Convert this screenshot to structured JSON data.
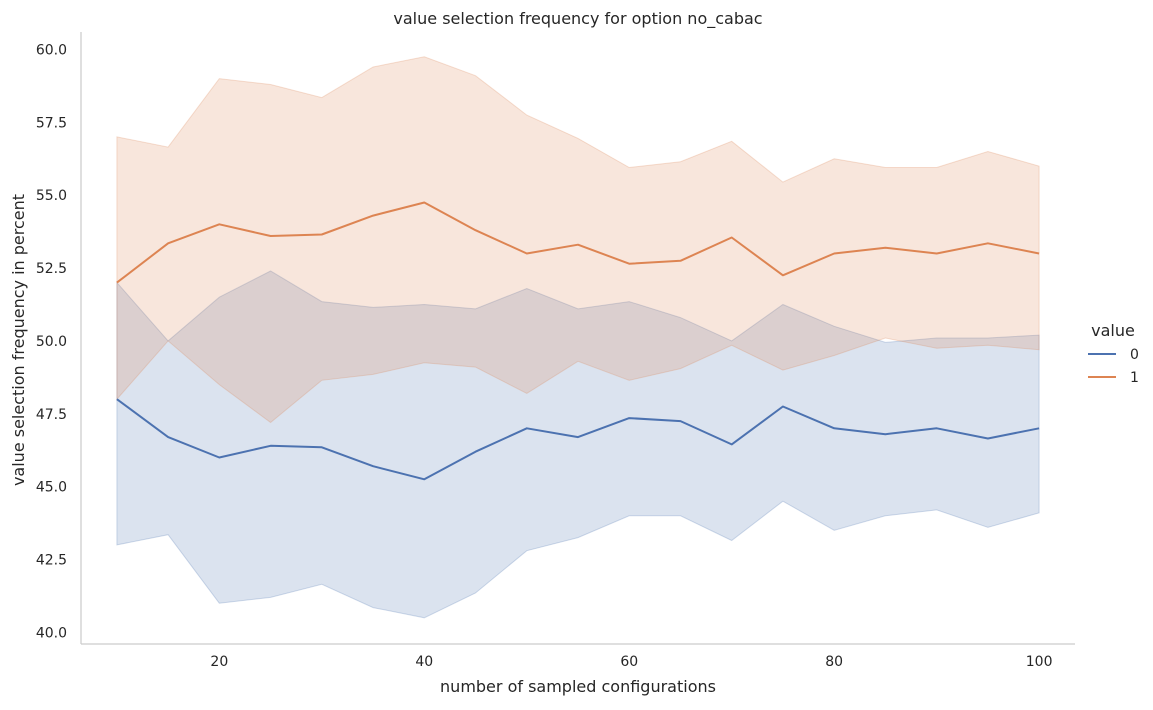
{
  "colors": {
    "series_0": "#4c72b0",
    "series_1": "#dd8452",
    "axis": "#cccccc",
    "text": "#262626"
  },
  "chart_data": {
    "type": "line",
    "title": "value selection frequency for option no_cabac",
    "xlabel": "number of sampled configurations",
    "ylabel": "value selection frequency in percent",
    "xlim": [
      6.5,
      103.5
    ],
    "ylim": [
      39.6,
      60.6
    ],
    "xticks": [
      20,
      40,
      60,
      80,
      100
    ],
    "xtick_labels": [
      "20",
      "40",
      "60",
      "80",
      "100"
    ],
    "yticks": [
      40,
      42.5,
      45,
      47.5,
      50,
      52.5,
      55,
      57.5,
      60
    ],
    "ytick_labels": [
      "40.0",
      "42.5",
      "45.0",
      "47.5",
      "50.0",
      "52.5",
      "55.0",
      "57.5",
      "60.0"
    ],
    "grid": false,
    "legend": {
      "title": "value",
      "placement": "right"
    },
    "x": [
      10,
      15,
      20,
      25,
      30,
      35,
      40,
      45,
      50,
      55,
      60,
      65,
      70,
      75,
      80,
      85,
      90,
      95,
      100
    ],
    "series": [
      {
        "name": "0",
        "color": "#4c72b0",
        "values": [
          48.0,
          46.7,
          46.0,
          46.4,
          46.35,
          45.7,
          45.25,
          46.2,
          47.0,
          46.7,
          47.35,
          47.25,
          46.45,
          47.75,
          47.0,
          46.8,
          47.0,
          46.65,
          47.0
        ],
        "ci_low": [
          43.0,
          43.35,
          41.0,
          41.2,
          41.65,
          40.85,
          40.5,
          41.35,
          42.8,
          43.25,
          44.0,
          44.0,
          43.15,
          44.5,
          43.5,
          44.0,
          44.2,
          43.6,
          44.1
        ],
        "ci_high": [
          52.0,
          50.0,
          51.5,
          52.4,
          51.35,
          51.15,
          51.25,
          51.1,
          51.8,
          51.1,
          51.35,
          50.8,
          50.0,
          51.25,
          50.5,
          49.95,
          50.1,
          50.1,
          50.2
        ]
      },
      {
        "name": "1",
        "color": "#dd8452",
        "values": [
          52.0,
          53.35,
          54.0,
          53.6,
          53.65,
          54.3,
          54.75,
          53.8,
          53.0,
          53.3,
          52.65,
          52.75,
          53.55,
          52.25,
          53.0,
          53.2,
          53.0,
          53.35,
          53.0
        ],
        "ci_low": [
          48.0,
          50.0,
          48.5,
          47.2,
          48.65,
          48.85,
          49.25,
          49.1,
          48.2,
          49.3,
          48.65,
          49.05,
          49.85,
          49.0,
          49.5,
          50.1,
          49.75,
          49.85,
          49.7
        ],
        "ci_high": [
          57.0,
          56.65,
          59.0,
          58.8,
          58.35,
          59.4,
          59.75,
          59.1,
          57.75,
          56.95,
          55.95,
          56.15,
          56.85,
          55.45,
          56.25,
          55.95,
          55.95,
          56.5,
          56.0
        ]
      }
    ]
  }
}
